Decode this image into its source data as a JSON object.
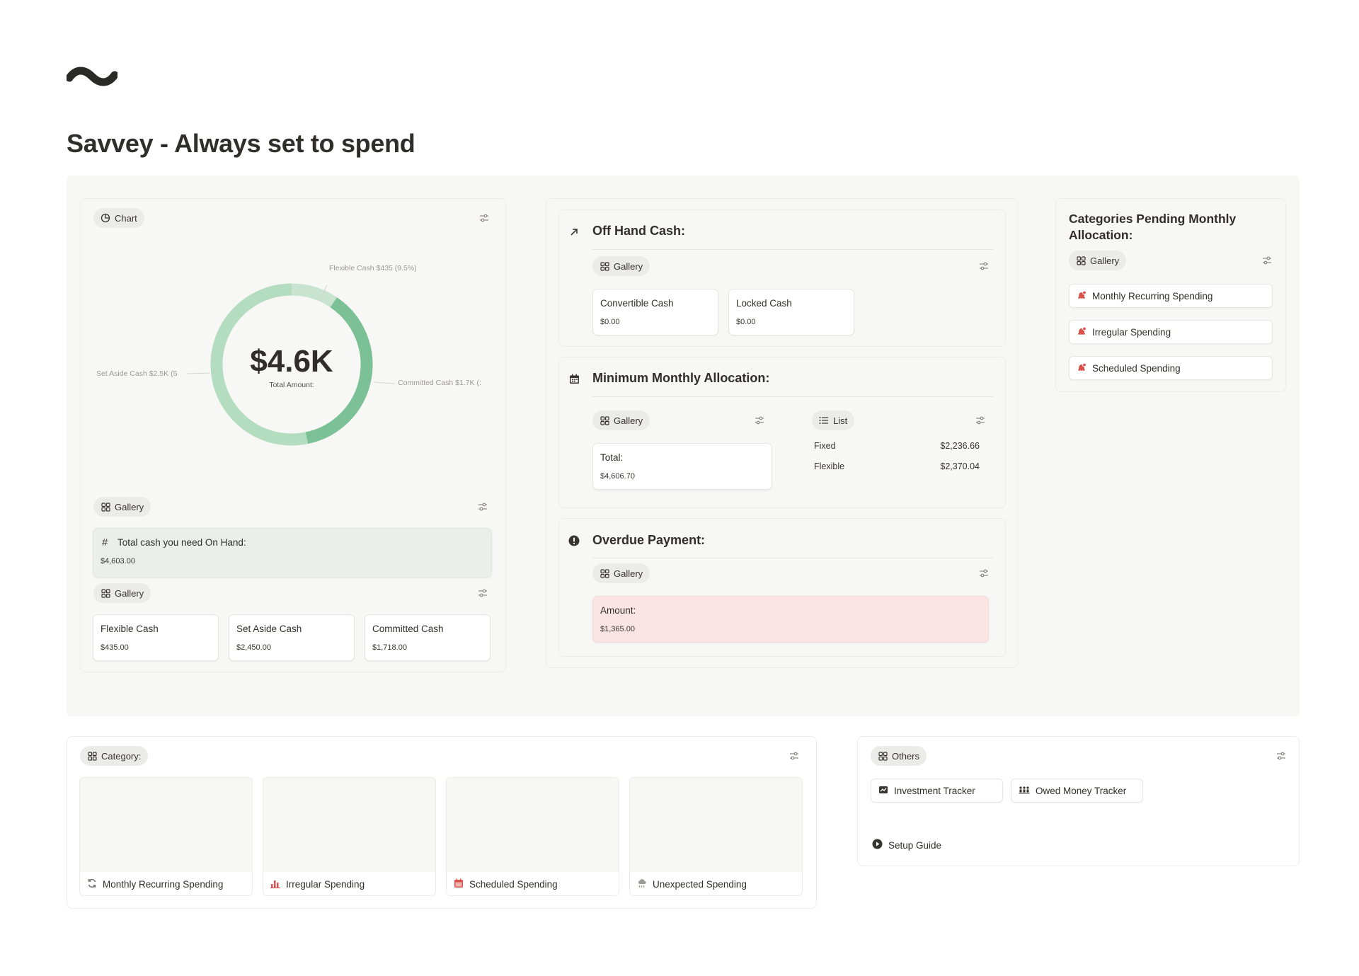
{
  "page": {
    "title": "Savvey - Always set to spend"
  },
  "chart_panel": {
    "view_label": "Chart",
    "chart_data": {
      "type": "pie",
      "center_value": "$4.6K",
      "center_caption": "Total Amount:",
      "slices": [
        {
          "name": "Flexible Cash",
          "label": "Flexible Cash  $435 (9.5%)",
          "value": 435,
          "color": "#c8e3cf"
        },
        {
          "name": "Committed Cash",
          "label": "Committed Cash  $1.7K (:",
          "value": 1718,
          "color": "#7cc195"
        },
        {
          "name": "Set Aside Cash",
          "label": "Set Aside Cash  $2.5K (5",
          "value": 2450,
          "color": "#b4dcbf"
        }
      ]
    },
    "gallery_1": {
      "label": "Gallery",
      "total_card": {
        "title": "Total cash you need On Hand:",
        "value": "$4,603.00"
      }
    },
    "gallery_2": {
      "label": "Gallery",
      "cards": [
        {
          "title": "Flexible Cash",
          "value": "$435.00"
        },
        {
          "title": "Set Aside Cash",
          "value": "$2,450.00"
        },
        {
          "title": "Committed Cash",
          "value": "$1,718.00"
        }
      ]
    }
  },
  "middle": {
    "off_hand": {
      "title": "Off Hand Cash:",
      "view_label": "Gallery",
      "cards": [
        {
          "title": "Convertible Cash",
          "value": "$0.00"
        },
        {
          "title": "Locked Cash",
          "value": "$0.00"
        }
      ]
    },
    "minimum": {
      "title": "Minimum Monthly Allocation:",
      "gallery_label": "Gallery",
      "list_label": "List",
      "total_card": {
        "title": "Total:",
        "value": "$4,606.70"
      },
      "rows": [
        {
          "name": "Fixed",
          "value": "$2,236.66"
        },
        {
          "name": "Flexible",
          "value": "$2,370.04"
        }
      ]
    },
    "overdue": {
      "title": "Overdue Payment:",
      "view_label": "Gallery",
      "card": {
        "title": "Amount:",
        "value": "$1,365.00"
      }
    }
  },
  "pending": {
    "title_line1": "Categories Pending Monthly",
    "title_line2": "Allocation:",
    "view_label": "Gallery",
    "items": [
      "Monthly Recurring Spending",
      "Irregular Spending",
      "Scheduled Spending"
    ]
  },
  "category": {
    "view_label": "Category:",
    "cards": [
      {
        "label": "Monthly Recurring Spending",
        "icon": "recurring-icon"
      },
      {
        "label": "Irregular Spending",
        "icon": "bar-chart-icon"
      },
      {
        "label": "Scheduled Spending",
        "icon": "calendar-icon"
      },
      {
        "label": "Unexpected Spending",
        "icon": "storm-cloud-icon"
      }
    ]
  },
  "others": {
    "view_label": "Others",
    "items": [
      {
        "label": "Investment Tracker",
        "icon": "investment-icon"
      },
      {
        "label": "Owed Money Tracker",
        "icon": "people-icon"
      }
    ],
    "setup_label": "Setup Guide"
  },
  "colors": {
    "accent_green": "#7cc195",
    "overdue_bg": "#fbe4e4",
    "total_bg": "#eaefe9",
    "alert_red": "#d9534f"
  }
}
